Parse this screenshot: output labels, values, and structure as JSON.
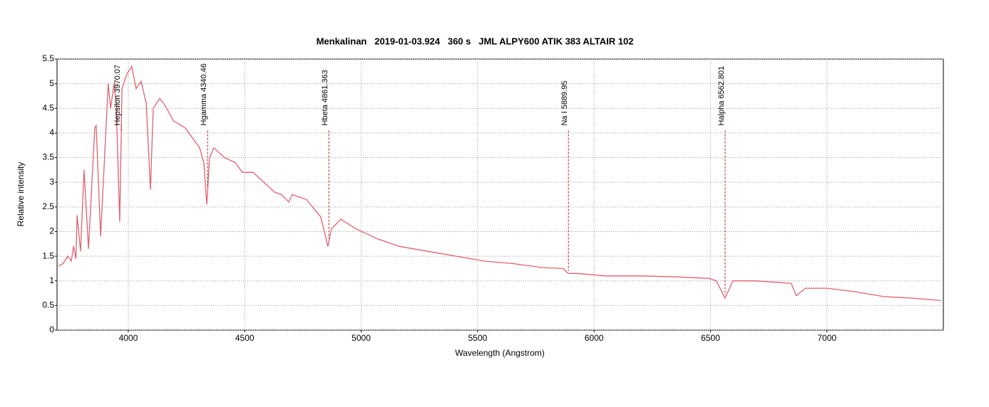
{
  "chart_data": {
    "type": "line",
    "title": "Menkalinan   2019-01-03.924   360 s   JML ALPY600 ATIK 383 ALTAIR 102",
    "xlabel": "Wavelength (Angstrom)",
    "ylabel": "Relative intensity",
    "x": [
      3700,
      3720,
      3740,
      3755,
      3765,
      3775,
      3780,
      3795,
      3810,
      3829,
      3856,
      3862,
      3881,
      3914,
      3924,
      3939,
      3948,
      3963,
      3973,
      3994,
      4015,
      4034,
      4055,
      4077,
      4095,
      4107,
      4135,
      4159,
      4193,
      4245,
      4306,
      4324,
      4337,
      4349,
      4367,
      4413,
      4459,
      4490,
      4536,
      4582,
      4628,
      4658,
      4689,
      4704,
      4765,
      4826,
      4842,
      4857,
      4872,
      4912,
      4980,
      5071,
      5163,
      5286,
      5408,
      5531,
      5653,
      5776,
      5867,
      5889,
      5928,
      6051,
      6204,
      6357,
      6495,
      6525,
      6562,
      6596,
      6694,
      6847,
      6868,
      6908,
      7000,
      7122,
      7245,
      7367,
      7490
    ],
    "series": [
      {
        "name": "Menkalinan",
        "color": "#e06070",
        "values": [
          1.3,
          1.35,
          1.5,
          1.4,
          1.7,
          1.45,
          2.33,
          1.6,
          3.25,
          1.65,
          4.1,
          4.15,
          1.9,
          5.0,
          4.5,
          5.0,
          4.55,
          2.2,
          4.9,
          5.2,
          5.35,
          4.9,
          5.05,
          4.6,
          2.85,
          4.5,
          4.7,
          4.55,
          4.25,
          4.1,
          3.7,
          3.4,
          2.55,
          3.5,
          3.7,
          3.5,
          3.4,
          3.2,
          3.2,
          3.0,
          2.8,
          2.75,
          2.6,
          2.75,
          2.65,
          2.3,
          2.0,
          1.7,
          2.05,
          2.25,
          2.05,
          1.85,
          1.7,
          1.6,
          1.5,
          1.4,
          1.35,
          1.27,
          1.25,
          1.15,
          1.15,
          1.1,
          1.1,
          1.08,
          1.05,
          1.0,
          0.65,
          1.0,
          1.0,
          0.95,
          0.7,
          0.85,
          0.85,
          0.78,
          0.68,
          0.65,
          0.6
        ]
      }
    ],
    "annotations": [
      {
        "label": "Hepsilon 3970.07",
        "x": 3970.07
      },
      {
        "label": "Hgamma 4340.46",
        "x": 4340.46
      },
      {
        "label": "Hbeta 4861.363",
        "x": 4861.363
      },
      {
        "label": "Na I 5889.95",
        "x": 5889.95
      },
      {
        "label": "Halpha 6562.801",
        "x": 6562.801
      }
    ],
    "annotation_color": "#a02020",
    "xlim": [
      3694,
      7500
    ],
    "ylim": [
      0,
      5.5
    ],
    "xticks": [
      4000,
      4500,
      5000,
      5500,
      6000,
      6500,
      7000
    ],
    "yticks": [
      0,
      0.5,
      1,
      1.5,
      2,
      2.5,
      3,
      3.5,
      4,
      4.5,
      5,
      5.5
    ],
    "grid": true
  }
}
